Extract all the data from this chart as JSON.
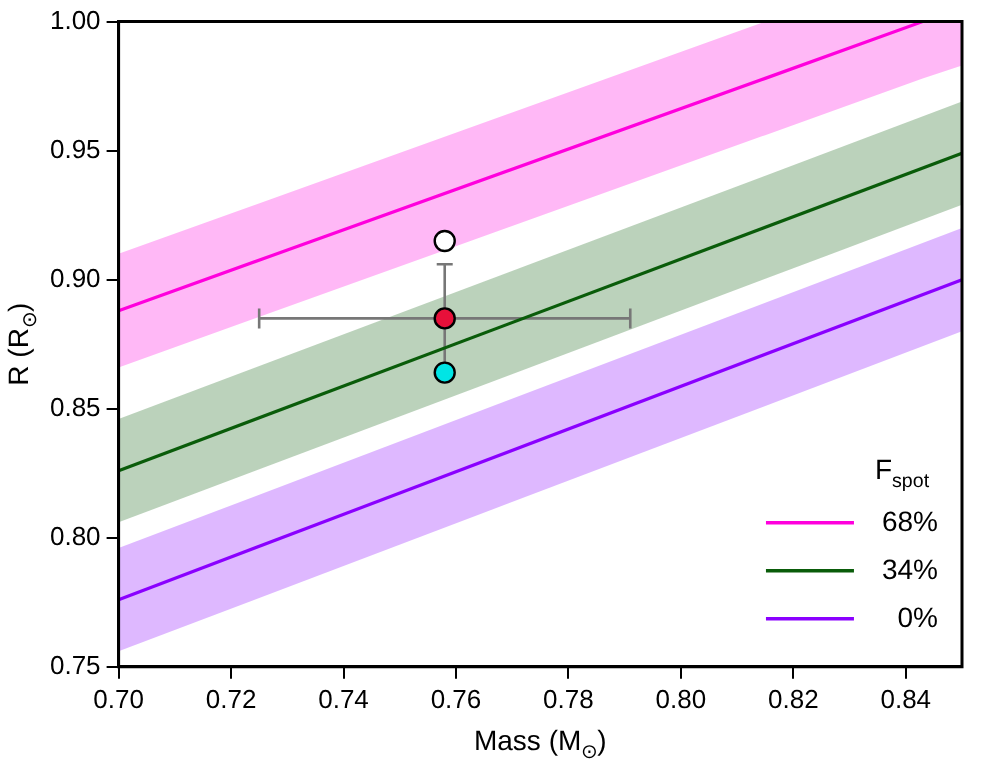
{
  "chart_data": {
    "type": "line",
    "xlabel": "Mass (M$_{⊙}$)",
    "ylabel": "R (R$_{⊙}$)",
    "legend_title": "F$_{spot}$",
    "legend": "bottom right",
    "grid": false,
    "marker": "none",
    "xlim": [
      0.7,
      0.85
    ],
    "ylim": [
      0.75,
      1.0
    ],
    "xticks": [
      {
        "value": 0.7,
        "label": "0.70"
      },
      {
        "value": 0.72,
        "label": "0.72"
      },
      {
        "value": 0.74,
        "label": "0.74"
      },
      {
        "value": 0.76,
        "label": "0.76"
      },
      {
        "value": 0.78,
        "label": "0.78"
      },
      {
        "value": 0.8,
        "label": "0.80"
      },
      {
        "value": 0.82,
        "label": "0.82"
      },
      {
        "value": 0.84,
        "label": "0.84"
      }
    ],
    "yticks": [
      {
        "value": 0.75,
        "label": "0.75"
      },
      {
        "value": 0.8,
        "label": "0.80"
      },
      {
        "value": 0.85,
        "label": "0.85"
      },
      {
        "value": 0.9,
        "label": "0.90"
      },
      {
        "value": 0.95,
        "label": "0.95"
      },
      {
        "value": 1.0,
        "label": "1.00"
      }
    ],
    "series": [
      {
        "type": "line",
        "name": "68%",
        "color": "#ff00dd",
        "x": [
          0.7,
          0.815,
          0.843,
          0.85
        ],
        "values": [
          0.888,
          0.978,
          1.0,
          null
        ],
        "lower": [
          0.866,
          0.956,
          0.978,
          0.983
        ],
        "upper": [
          0.91,
          1.0,
          1.0,
          1.0
        ]
      },
      {
        "type": "line",
        "name": "34%",
        "color": "#0a5c0a",
        "x": [
          0.7,
          0.85
        ],
        "values": [
          0.826,
          0.949
        ],
        "lower": [
          0.806,
          0.929
        ],
        "upper": [
          0.846,
          0.969
        ]
      },
      {
        "type": "line",
        "name": "0%",
        "color": "#8a00ff",
        "x": [
          0.7,
          0.85
        ],
        "values": [
          0.776,
          0.9
        ],
        "lower": [
          0.756,
          0.88
        ],
        "upper": [
          0.796,
          0.92
        ]
      },
      {
        "type": "scatter",
        "marker": "circle",
        "x": [
          0.758,
          0.758,
          0.758
        ],
        "values": [
          0.915,
          0.885,
          0.864
        ],
        "colors": [
          "#ffffff",
          "#e8103a",
          "#00e5e5"
        ],
        "errors": [
          null,
          [
            0.865,
            0.906
          ],
          null
        ],
        "xerrors": [
          null,
          [
            0.725,
            0.791
          ],
          null
        ]
      }
    ]
  }
}
